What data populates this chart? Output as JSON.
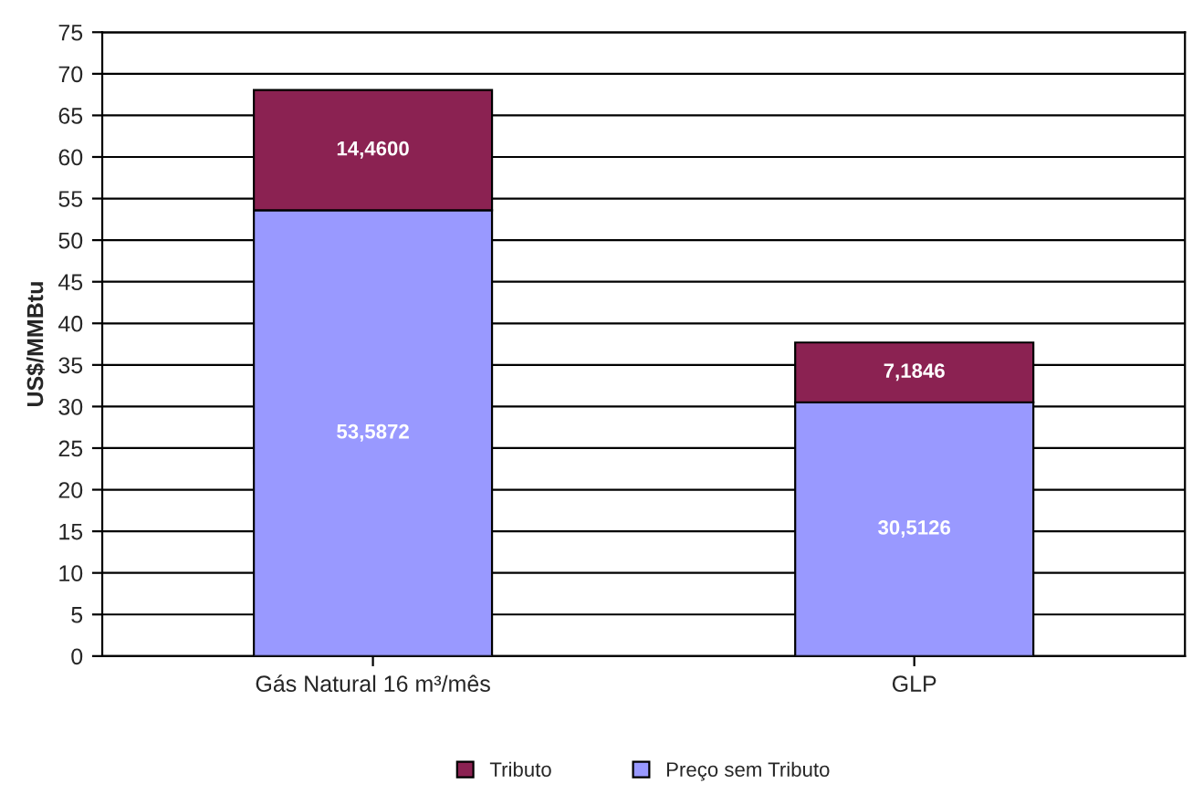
{
  "chart_data": {
    "type": "bar",
    "stacked": true,
    "ylabel": "US$/MMBtu",
    "categories": [
      "Gás Natural 16 m³/mês",
      "GLP"
    ],
    "series": [
      {
        "name": "Preço sem Tributo",
        "color": "#9999ff",
        "values": [
          53.5872,
          30.5126
        ],
        "value_labels": [
          "53,5872",
          "30,5126"
        ]
      },
      {
        "name": "Tributo",
        "color": "#8b2252",
        "values": [
          14.46,
          7.1846
        ],
        "value_labels": [
          "14,4600",
          "7,1846"
        ]
      }
    ],
    "ylim": [
      0,
      75
    ],
    "yticks": [
      0,
      5,
      10,
      15,
      20,
      25,
      30,
      35,
      40,
      45,
      50,
      55,
      60,
      65,
      70,
      75
    ],
    "grid": "y",
    "legend": "bottom"
  }
}
